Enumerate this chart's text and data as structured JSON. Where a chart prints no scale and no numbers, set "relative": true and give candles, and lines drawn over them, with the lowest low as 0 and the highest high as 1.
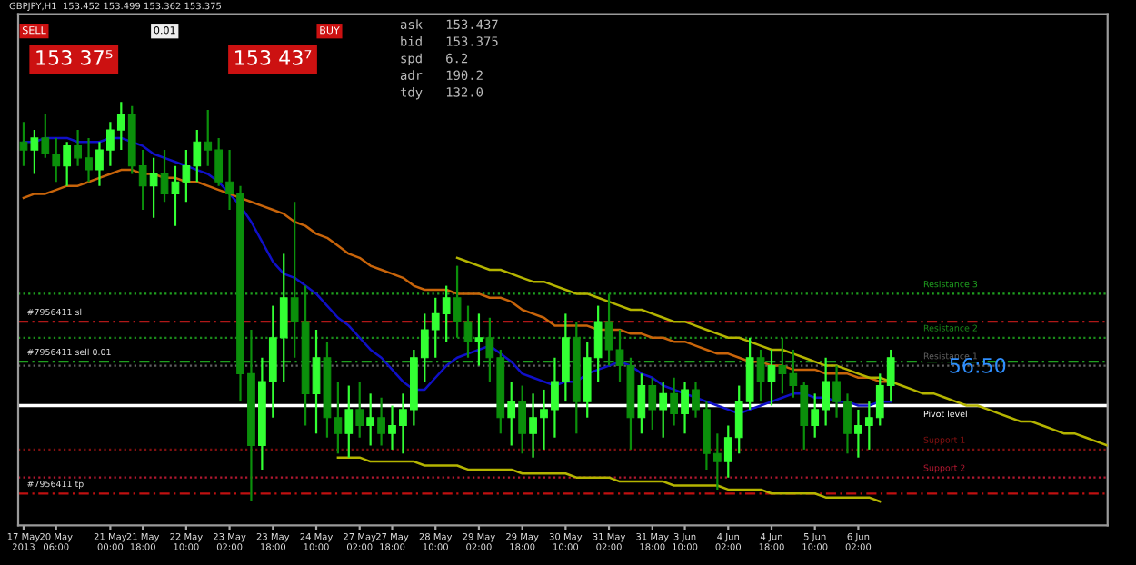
{
  "chart_data": {
    "type": "candlestick",
    "title": "GBPJPY,H1  153.452 153.499 153.362 153.375",
    "relative": true,
    "categories": [
      "17 May 2013",
      null,
      null,
      "20 May 06:00",
      null,
      null,
      null,
      null,
      "21 May 00:00",
      null,
      null,
      "21 May 18:00",
      null,
      null,
      null,
      "22 May 10:00",
      null,
      null,
      null,
      "23 May 02:00",
      null,
      null,
      null,
      "23 May 18:00",
      null,
      null,
      null,
      "24 May 10:00",
      null,
      null,
      null,
      "27 May 02:00",
      null,
      null,
      "27 May 18:00",
      null,
      null,
      null,
      "28 May 10:00",
      null,
      null,
      null,
      "29 May 02:00",
      null,
      null,
      null,
      "29 May 18:00",
      null,
      null,
      null,
      "30 May 10:00",
      null,
      null,
      null,
      "31 May 02:00",
      null,
      null,
      null,
      "31 May 18:00",
      null,
      null,
      "3 Jun 10:00",
      null,
      null,
      null,
      "4 Jun 02:00",
      null,
      null,
      null,
      "4 Jun 18:00",
      null,
      null,
      null,
      "5 Jun 10:00",
      null,
      null,
      null,
      "6 Jun 02:00",
      null,
      null,
      null,
      null,
      null,
      null,
      null,
      null,
      null,
      null,
      null,
      null,
      null,
      null,
      null,
      null,
      null,
      null,
      null,
      null,
      null,
      null,
      null
    ],
    "ohlc": [
      [
        0.9,
        0.95,
        0.84,
        0.88
      ],
      [
        0.88,
        0.93,
        0.82,
        0.91
      ],
      [
        0.91,
        0.97,
        0.86,
        0.87
      ],
      [
        0.87,
        0.91,
        0.8,
        0.84
      ],
      [
        0.84,
        0.9,
        0.79,
        0.89
      ],
      [
        0.89,
        0.93,
        0.84,
        0.86
      ],
      [
        0.86,
        0.91,
        0.8,
        0.83
      ],
      [
        0.83,
        0.9,
        0.79,
        0.88
      ],
      [
        0.88,
        0.95,
        0.84,
        0.93
      ],
      [
        0.93,
        1.0,
        0.88,
        0.97
      ],
      [
        0.97,
        0.99,
        0.82,
        0.84
      ],
      [
        0.84,
        0.88,
        0.73,
        0.79
      ],
      [
        0.79,
        0.86,
        0.71,
        0.82
      ],
      [
        0.82,
        0.88,
        0.75,
        0.77
      ],
      [
        0.77,
        0.84,
        0.69,
        0.8
      ],
      [
        0.8,
        0.88,
        0.75,
        0.84
      ],
      [
        0.84,
        0.93,
        0.8,
        0.9
      ],
      [
        0.9,
        0.98,
        0.84,
        0.88
      ],
      [
        0.88,
        0.91,
        0.79,
        0.8
      ],
      [
        0.8,
        0.88,
        0.73,
        0.77
      ],
      [
        0.77,
        0.79,
        0.25,
        0.32
      ],
      [
        0.32,
        0.43,
        0,
        0.14
      ],
      [
        0.14,
        0.36,
        0.08,
        0.3
      ],
      [
        0.3,
        0.49,
        0.21,
        0.41
      ],
      [
        0.41,
        0.62,
        0.3,
        0.51
      ],
      [
        0.51,
        0.75,
        0.36,
        0.45
      ],
      [
        0.45,
        0.54,
        0.19,
        0.27
      ],
      [
        0.27,
        0.43,
        0.17,
        0.36
      ],
      [
        0.36,
        0.4,
        0.16,
        0.21
      ],
      [
        0.21,
        0.3,
        0.12,
        0.17
      ],
      [
        0.17,
        0.29,
        0.11,
        0.23
      ],
      [
        0.23,
        0.3,
        0.16,
        0.19
      ],
      [
        0.19,
        0.27,
        0.14,
        0.21
      ],
      [
        0.21,
        0.26,
        0.14,
        0.17
      ],
      [
        0.17,
        0.24,
        0.13,
        0.19
      ],
      [
        0.19,
        0.27,
        0.12,
        0.23
      ],
      [
        0.23,
        0.38,
        0.19,
        0.36
      ],
      [
        0.36,
        0.47,
        0.3,
        0.43
      ],
      [
        0.43,
        0.51,
        0.36,
        0.47
      ],
      [
        0.47,
        0.54,
        0.4,
        0.51
      ],
      [
        0.51,
        0.59,
        0.41,
        0.45
      ],
      [
        0.45,
        0.49,
        0.36,
        0.4
      ],
      [
        0.4,
        0.47,
        0.34,
        0.41
      ],
      [
        0.41,
        0.46,
        0.3,
        0.36
      ],
      [
        0.36,
        0.38,
        0.17,
        0.21
      ],
      [
        0.21,
        0.3,
        0.14,
        0.25
      ],
      [
        0.25,
        0.29,
        0.12,
        0.17
      ],
      [
        0.17,
        0.27,
        0.11,
        0.21
      ],
      [
        0.21,
        0.28,
        0.13,
        0.23
      ],
      [
        0.23,
        0.36,
        0.16,
        0.3
      ],
      [
        0.3,
        0.47,
        0.25,
        0.41
      ],
      [
        0.41,
        0.45,
        0.17,
        0.25
      ],
      [
        0.25,
        0.4,
        0.21,
        0.36
      ],
      [
        0.36,
        0.49,
        0.3,
        0.45
      ],
      [
        0.45,
        0.52,
        0.34,
        0.38
      ],
      [
        0.38,
        0.43,
        0.3,
        0.34
      ],
      [
        0.34,
        0.36,
        0.13,
        0.21
      ],
      [
        0.21,
        0.32,
        0.17,
        0.29
      ],
      [
        0.29,
        0.31,
        0.18,
        0.23
      ],
      [
        0.23,
        0.3,
        0.16,
        0.27
      ],
      [
        0.27,
        0.31,
        0.19,
        0.22
      ],
      [
        0.22,
        0.3,
        0.17,
        0.28
      ],
      [
        0.28,
        0.3,
        0.21,
        0.23
      ],
      [
        0.23,
        0.25,
        0.08,
        0.12
      ],
      [
        0.12,
        0.17,
        0.03,
        0.1
      ],
      [
        0.1,
        0.19,
        0.06,
        0.16
      ],
      [
        0.16,
        0.29,
        0.12,
        0.25
      ],
      [
        0.25,
        0.41,
        0.23,
        0.36
      ],
      [
        0.36,
        0.38,
        0.25,
        0.3
      ],
      [
        0.3,
        0.38,
        0.24,
        0.34
      ],
      [
        0.34,
        0.41,
        0.27,
        0.32
      ],
      [
        0.32,
        0.38,
        0.26,
        0.29
      ],
      [
        0.29,
        0.3,
        0.13,
        0.19
      ],
      [
        0.19,
        0.27,
        0.16,
        0.23
      ],
      [
        0.23,
        0.36,
        0.19,
        0.3
      ],
      [
        0.3,
        0.34,
        0.21,
        0.25
      ],
      [
        0.25,
        0.27,
        0.12,
        0.17
      ],
      [
        0.17,
        0.23,
        0.11,
        0.19
      ],
      [
        0.19,
        0.25,
        0.13,
        0.21
      ],
      [
        0.21,
        0.32,
        0.19,
        0.29
      ],
      [
        0.29,
        0.38,
        0.25,
        0.36
      ],
      null,
      null,
      null,
      null,
      null,
      null,
      null,
      null,
      null,
      null,
      null,
      null,
      null,
      null,
      null,
      null,
      null,
      null,
      null,
      null
    ],
    "colors": [
      "#0b8f0b",
      "#33ff33",
      "#0b8f0b",
      "#0b8f0b",
      "#33ff33",
      "#0b8f0b",
      "#0b8f0b",
      "#33ff33",
      "#33ff33",
      "#33ff33",
      "#0b8f0b",
      "#0b8f0b",
      "#33ff33",
      "#0b8f0b",
      "#33ff33",
      "#33ff33",
      "#33ff33",
      "#0b8f0b",
      "#0b8f0b",
      "#0b8f0b",
      "#0b8f0b",
      "#0b8f0b",
      "#33ff33",
      "#33ff33",
      "#33ff33",
      "#0b8f0b",
      "#0b8f0b",
      "#33ff33",
      "#0b8f0b",
      "#0b8f0b",
      "#33ff33",
      "#0b8f0b",
      "#33ff33",
      "#0b8f0b",
      "#33ff33",
      "#33ff33",
      "#33ff33",
      "#33ff33",
      "#33ff33",
      "#33ff33",
      "#0b8f0b",
      "#0b8f0b",
      "#33ff33",
      "#0b8f0b",
      "#0b8f0b",
      "#33ff33",
      "#0b8f0b",
      "#33ff33",
      "#33ff33",
      "#33ff33",
      "#33ff33",
      "#0b8f0b",
      "#33ff33",
      "#33ff33",
      "#0b8f0b",
      "#0b8f0b",
      "#0b8f0b",
      "#33ff33",
      "#0b8f0b",
      "#33ff33",
      "#0b8f0b",
      "#33ff33",
      "#0b8f0b",
      "#0b8f0b",
      "#0b8f0b",
      "#33ff33",
      "#33ff33",
      "#33ff33",
      "#0b8f0b",
      "#33ff33",
      "#0b8f0b",
      "#0b8f0b",
      "#0b8f0b",
      "#33ff33",
      "#33ff33",
      "#0b8f0b",
      "#0b8f0b",
      "#33ff33",
      "#33ff33",
      "#33ff33",
      "#33ff33",
      null,
      null,
      null,
      null,
      null,
      null,
      null,
      null,
      null,
      null,
      null,
      null,
      null,
      null,
      null,
      null,
      null,
      null,
      null,
      null
    ],
    "series": [
      {
        "type": "line",
        "color": "#1010c8",
        "values": [
          0.9,
          0.9,
          0.91,
          0.91,
          0.91,
          0.9,
          0.9,
          0.9,
          0.91,
          0.91,
          0.9,
          0.89,
          0.87,
          0.86,
          0.85,
          0.84,
          0.83,
          0.82,
          0.8,
          0.77,
          0.74,
          0.7,
          0.65,
          0.6,
          0.57,
          0.56,
          0.54,
          0.52,
          0.49,
          0.46,
          0.44,
          0.41,
          0.38,
          0.36,
          0.33,
          0.3,
          0.28,
          0.28,
          0.31,
          0.34,
          0.36,
          0.37,
          0.38,
          0.39,
          0.37,
          0.35,
          0.32,
          0.31,
          0.3,
          0.29,
          0.3,
          0.3,
          0.32,
          0.33,
          0.34,
          0.35,
          0.34,
          0.32,
          0.31,
          0.29,
          0.28,
          0.27,
          0.26,
          0.25,
          0.24,
          0.23,
          0.22,
          0.23,
          0.24,
          0.25,
          0.26,
          0.27,
          0.27,
          0.26,
          0.26,
          0.25,
          0.25,
          0.24,
          0.24,
          0.25,
          0.25,
          null,
          null,
          null,
          null,
          null,
          null,
          null,
          null,
          null,
          null,
          null,
          null,
          null,
          null,
          null,
          null,
          null,
          null,
          null,
          null
        ]
      },
      {
        "type": "line",
        "color": "#c8640a",
        "values": [
          0.76,
          0.77,
          0.77,
          0.78,
          0.79,
          0.79,
          0.8,
          0.81,
          0.82,
          0.83,
          0.83,
          0.82,
          0.82,
          0.81,
          0.81,
          0.8,
          0.8,
          0.79,
          0.78,
          0.77,
          0.76,
          0.75,
          0.74,
          0.73,
          0.72,
          0.7,
          0.69,
          0.67,
          0.66,
          0.64,
          0.62,
          0.61,
          0.59,
          0.58,
          0.57,
          0.56,
          0.54,
          0.53,
          0.53,
          0.53,
          0.52,
          0.52,
          0.52,
          0.51,
          0.51,
          0.5,
          0.48,
          0.47,
          0.46,
          0.44,
          0.44,
          0.44,
          0.44,
          0.43,
          0.43,
          0.43,
          0.42,
          0.42,
          0.41,
          0.41,
          0.4,
          0.4,
          0.39,
          0.38,
          0.37,
          0.37,
          0.36,
          0.35,
          0.35,
          0.34,
          0.34,
          0.33,
          0.33,
          0.33,
          0.32,
          0.32,
          0.32,
          0.31,
          0.31,
          0.3,
          0.3,
          null,
          null,
          null,
          null,
          null,
          null,
          null,
          null,
          null,
          null,
          null,
          null,
          null,
          null,
          null,
          null,
          null,
          null,
          null,
          null
        ]
      },
      {
        "type": "line",
        "color": "#b4b400",
        "values": [
          null,
          null,
          null,
          null,
          null,
          null,
          null,
          null,
          null,
          null,
          null,
          null,
          null,
          null,
          null,
          null,
          null,
          null,
          null,
          null,
          null,
          null,
          null,
          null,
          null,
          null,
          null,
          null,
          null,
          null,
          null,
          null,
          null,
          null,
          null,
          null,
          null,
          null,
          null,
          null,
          0.61,
          0.6,
          0.59,
          0.58,
          0.58,
          0.57,
          0.56,
          0.55,
          0.55,
          0.54,
          0.53,
          0.52,
          0.52,
          0.51,
          0.5,
          0.49,
          0.48,
          0.48,
          0.47,
          0.46,
          0.45,
          0.45,
          0.44,
          0.43,
          0.42,
          0.41,
          0.41,
          0.4,
          0.39,
          0.38,
          0.38,
          0.37,
          0.36,
          0.35,
          0.34,
          0.34,
          0.33,
          0.32,
          0.31,
          0.31,
          0.3,
          0.29,
          0.28,
          0.27,
          0.27,
          0.26,
          0.25,
          0.24,
          0.24,
          0.23,
          0.22,
          0.21,
          0.2,
          0.2,
          0.19,
          0.18,
          0.17,
          0.17,
          0.16,
          0.15,
          0.14
        ]
      },
      {
        "type": "line",
        "color": "#b4b400",
        "values": [
          null,
          null,
          null,
          null,
          null,
          null,
          null,
          null,
          null,
          null,
          null,
          null,
          null,
          null,
          null,
          null,
          null,
          null,
          null,
          null,
          null,
          null,
          null,
          null,
          null,
          null,
          null,
          null,
          null,
          0.11,
          0.11,
          0.11,
          0.1,
          0.1,
          0.1,
          0.1,
          0.1,
          0.09,
          0.09,
          0.09,
          0.09,
          0.08,
          0.08,
          0.08,
          0.08,
          0.08,
          0.07,
          0.07,
          0.07,
          0.07,
          0.07,
          0.06,
          0.06,
          0.06,
          0.06,
          0.05,
          0.05,
          0.05,
          0.05,
          0.05,
          0.04,
          0.04,
          0.04,
          0.04,
          0.04,
          0.03,
          0.03,
          0.03,
          0.03,
          0.02,
          0.02,
          0.02,
          0.02,
          0.02,
          0.01,
          0.01,
          0.01,
          0.01,
          0.01,
          0,
          null,
          null,
          null,
          null,
          null,
          null,
          null,
          null,
          null,
          null,
          null,
          null,
          null,
          null,
          null,
          null,
          null,
          null,
          null,
          null,
          null
        ]
      }
    ],
    "ref_lines": [
      {
        "axis": "y",
        "value": 0.52,
        "label": "Resistance 3",
        "color": "#1fa01f",
        "line_style": "dotted"
      },
      {
        "axis": "y",
        "value": 0.45,
        "label": "#7956411 sl",
        "color": "#b01818",
        "line_style": "dashed"
      },
      {
        "axis": "y",
        "value": 0.41,
        "label": "Resistance 2",
        "color": "#1a8a1a",
        "line_style": "dotted"
      },
      {
        "axis": "y",
        "value": 0.35,
        "label": "#7956411 sell 0.01",
        "color": "#1fa01f",
        "line_style": "dashed"
      },
      {
        "axis": "y",
        "value": 0.34,
        "label": "Resistance 1",
        "color": "#606060",
        "line_style": "dotted"
      },
      {
        "axis": "y",
        "value": 0.24,
        "label": "Pivot level",
        "color": "#ffffff",
        "line_style": "solid"
      },
      {
        "axis": "y",
        "value": 0.13,
        "label": "Support 1",
        "color": "#801010",
        "line_style": "dotted"
      },
      {
        "axis": "y",
        "value": 0.06,
        "label": "Support 2",
        "color": "#b01830",
        "line_style": "dotted"
      },
      {
        "axis": "y",
        "value": 0.02,
        "label": "#7956411 tp",
        "color": "#c01010",
        "line_style": "dashed"
      }
    ],
    "annotations": [
      "SELL",
      "0.01",
      "BUY",
      "153 37⁵",
      "153 43⁷",
      "ask   153.437",
      "bid   153.375",
      "spd   6.2",
      "adr   190.2",
      "tdy   132.0",
      "56:50"
    ],
    "grid": false,
    "legend": false,
    "tick_labels": "x"
  }
}
